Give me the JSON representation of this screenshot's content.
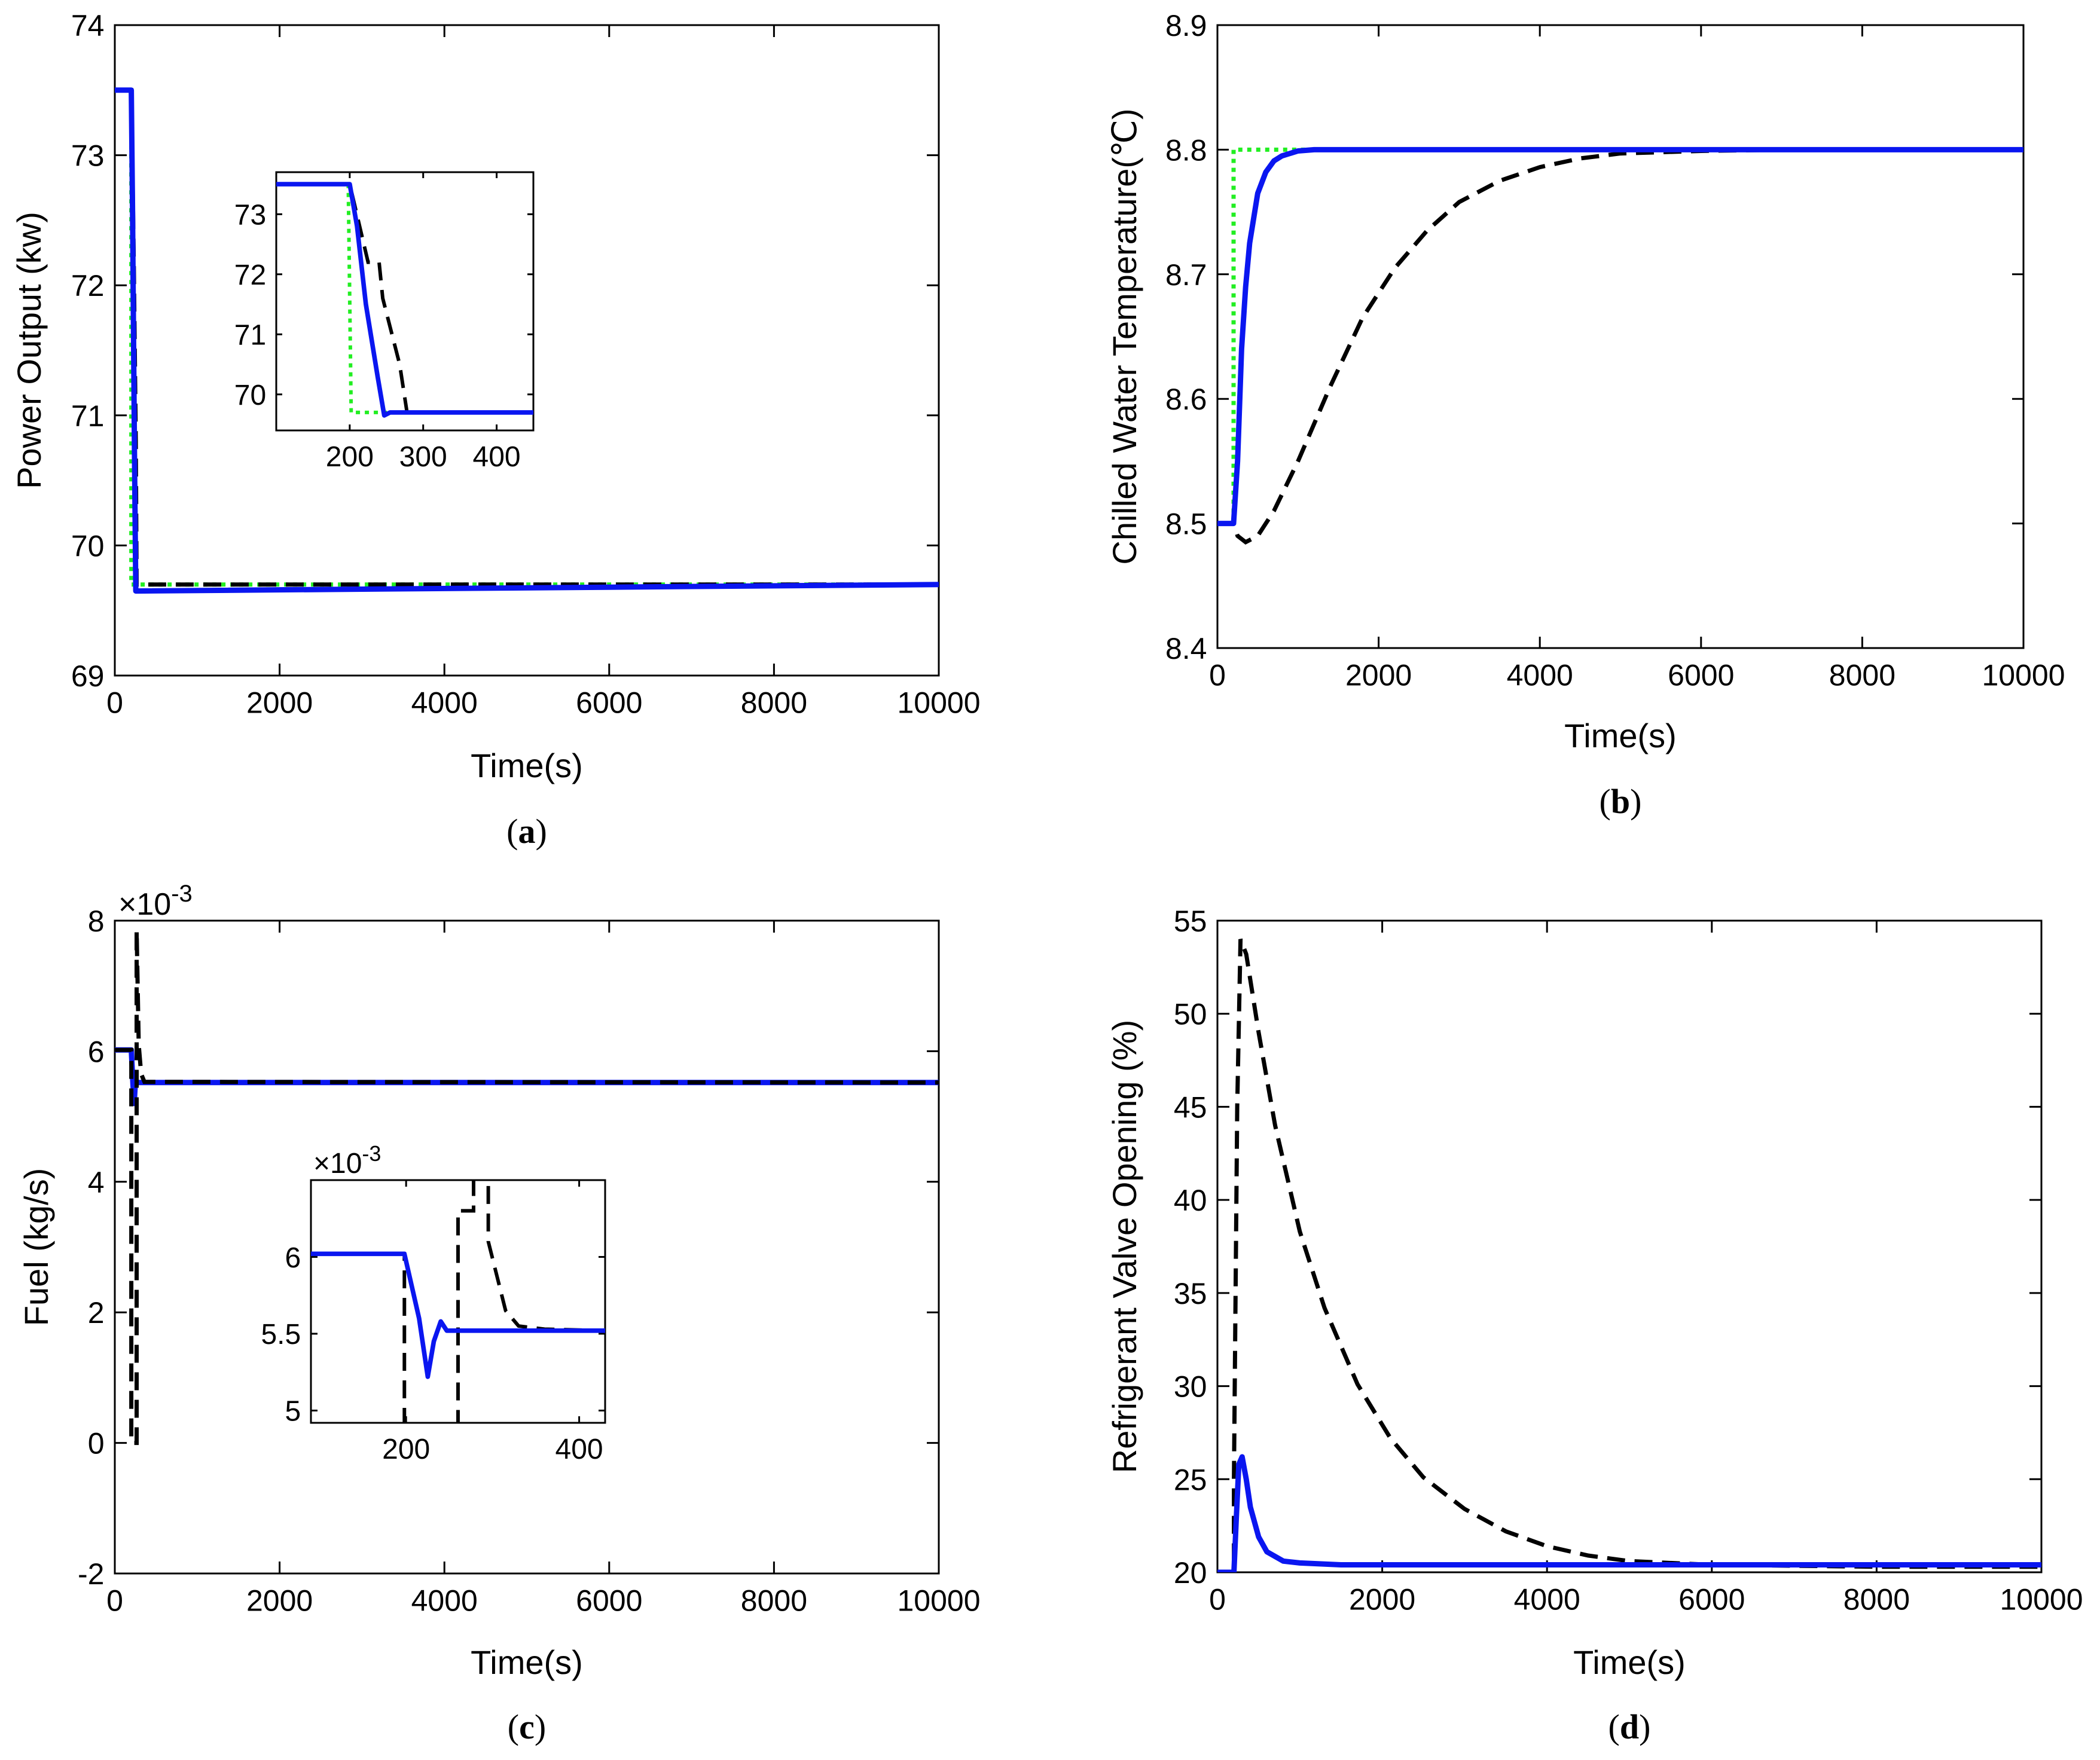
{
  "colors": {
    "blue": "#0a16f0",
    "green": "#22ee22",
    "black": "#000000"
  },
  "chart_data": [
    {
      "id": "a",
      "type": "line",
      "caption_letter": "a",
      "xlabel": "Time(s)",
      "ylabel": "Power Output (kw)",
      "xlim": [
        0,
        10000
      ],
      "ylim": [
        69,
        74
      ],
      "xticks": [
        0,
        2000,
        4000,
        6000,
        8000,
        10000
      ],
      "yticks": [
        69,
        70,
        71,
        72,
        73,
        74
      ],
      "series": [
        {
          "name": "green dotted",
          "style": "green-dotted",
          "x": [
            0,
            200,
            200,
            10000
          ],
          "y": [
            73.5,
            73.5,
            69.7,
            69.7
          ]
        },
        {
          "name": "black dashed",
          "style": "black-dashed",
          "x": [
            0,
            200,
            230,
            255,
            265,
            10000
          ],
          "y": [
            73.5,
            73.5,
            72.2,
            70.8,
            69.7,
            69.7
          ]
        },
        {
          "name": "blue solid",
          "style": "blue-solid",
          "x": [
            0,
            200,
            215,
            240,
            255,
            10000
          ],
          "y": [
            73.5,
            73.5,
            72.6,
            70.6,
            69.65,
            69.7
          ]
        }
      ],
      "inset": {
        "xlim": [
          100,
          450
        ],
        "ylim": [
          69.4,
          73.7
        ],
        "xticks": [
          200,
          300,
          400
        ],
        "yticks": [
          70,
          71,
          72,
          73
        ],
        "series": [
          {
            "style": "green-dotted",
            "x": [
              100,
              198,
              202,
              450
            ],
            "y": [
              73.5,
              73.5,
              69.7,
              69.7
            ]
          },
          {
            "style": "black-dashed",
            "x": [
              100,
              200,
              225,
              240,
              245,
              268,
              278,
              450
            ],
            "y": [
              73.5,
              73.5,
              72.2,
              72.2,
              71.6,
              70.5,
              69.7,
              69.7
            ]
          },
          {
            "style": "blue-solid",
            "x": [
              100,
              200,
              210,
              222,
              238,
              247,
              255,
              450
            ],
            "y": [
              73.5,
              73.5,
              72.8,
              71.5,
              70.3,
              69.65,
              69.7,
              69.7
            ]
          }
        ]
      }
    },
    {
      "id": "b",
      "type": "line",
      "caption_letter": "b",
      "xlabel": "Time(s)",
      "ylabel": "Chilled Water Temperature(℃)",
      "xlim": [
        0,
        10000
      ],
      "ylim": [
        8.4,
        8.9
      ],
      "xticks": [
        0,
        2000,
        4000,
        6000,
        8000,
        10000
      ],
      "yticks": [
        8.4,
        8.5,
        8.6,
        8.7,
        8.8,
        8.9
      ],
      "series": [
        {
          "name": "green dotted",
          "style": "green-dotted",
          "x": [
            0,
            200,
            200,
            10000
          ],
          "y": [
            8.5,
            8.5,
            8.8,
            8.8
          ]
        },
        {
          "name": "black dashed",
          "style": "black-dashed",
          "x": [
            0,
            200,
            250,
            350,
            500,
            700,
            1000,
            1400,
            1800,
            2200,
            2600,
            3000,
            3500,
            4000,
            4500,
            5000,
            6000,
            7000,
            8000,
            10000
          ],
          "y": [
            8.5,
            8.5,
            8.49,
            8.485,
            8.49,
            8.51,
            8.55,
            8.61,
            8.665,
            8.705,
            8.735,
            8.758,
            8.775,
            8.786,
            8.793,
            8.797,
            8.799,
            8.8,
            8.8,
            8.8
          ]
        },
        {
          "name": "blue solid",
          "style": "blue-solid",
          "x": [
            0,
            200,
            250,
            300,
            350,
            400,
            500,
            600,
            700,
            800,
            1000,
            1200,
            1500,
            2000,
            10000
          ],
          "y": [
            8.5,
            8.5,
            8.55,
            8.64,
            8.69,
            8.725,
            8.765,
            8.782,
            8.791,
            8.795,
            8.799,
            8.8,
            8.8,
            8.8,
            8.8
          ]
        }
      ]
    },
    {
      "id": "c",
      "type": "line",
      "caption_letter": "c",
      "xlabel": "Time(s)",
      "ylabel": "Fuel (kg/s)",
      "exponent_label": "×10",
      "exponent_power": "-3",
      "xlim": [
        0,
        10000
      ],
      "ylim": [
        -2,
        8
      ],
      "xticks": [
        0,
        2000,
        4000,
        6000,
        8000,
        10000
      ],
      "yticks": [
        -2,
        0,
        2,
        4,
        6,
        8
      ],
      "series": [
        {
          "name": "blue solid",
          "style": "blue-solid",
          "x": [
            0,
            200,
            220,
            235,
            250,
            10000
          ],
          "y": [
            6.02,
            6.02,
            5.5,
            5.2,
            5.52,
            5.52
          ]
        },
        {
          "name": "black dashed",
          "style": "black-dashed",
          "x": [
            0,
            200,
            200,
            265,
            265,
            290,
            320,
            360,
            10000
          ],
          "y": [
            6.02,
            6.02,
            0,
            0,
            7.85,
            6.1,
            5.65,
            5.53,
            5.52
          ]
        }
      ],
      "inset": {
        "exponent_label": "×10",
        "exponent_power": "-3",
        "xlim": [
          90,
          430
        ],
        "ylim": [
          4.92,
          6.5
        ],
        "xticks": [
          200,
          400
        ],
        "yticks": [
          5,
          5.5,
          6
        ],
        "series": [
          {
            "style": "black-dashed",
            "x": [
              90,
              198,
              198,
              260,
              260,
              278,
              278,
              295,
              295,
              315,
              330,
              360,
              430
            ],
            "y": [
              6.02,
              6.02,
              4.5,
              4.5,
              6.3,
              6.3,
              6.65,
              6.65,
              6.1,
              5.65,
              5.55,
              5.53,
              5.52
            ]
          },
          {
            "style": "blue-solid",
            "x": [
              90,
              198,
              215,
              225,
              232,
              240,
              247,
              430
            ],
            "y": [
              6.02,
              6.02,
              5.6,
              5.22,
              5.45,
              5.58,
              5.52,
              5.52
            ]
          }
        ]
      }
    },
    {
      "id": "d",
      "type": "line",
      "caption_letter": "d",
      "xlabel": "Time(s)",
      "ylabel": "Refrigerant Valve Opening (%)",
      "xlim": [
        0,
        10000
      ],
      "ylim": [
        20,
        55
      ],
      "xticks": [
        0,
        2000,
        4000,
        6000,
        8000,
        10000
      ],
      "yticks": [
        20,
        25,
        30,
        35,
        40,
        45,
        50,
        55
      ],
      "series": [
        {
          "name": "black dashed",
          "style": "black-dashed",
          "x": [
            0,
            200,
            200,
            240,
            280,
            350,
            500,
            700,
            1000,
            1300,
            1700,
            2100,
            2500,
            3000,
            3500,
            4000,
            4500,
            5000,
            6000,
            7000,
            8000,
            10000
          ],
          "y": [
            20,
            20,
            25,
            45,
            54,
            53.2,
            49,
            44,
            38.3,
            34.2,
            30.1,
            27.2,
            25.1,
            23.4,
            22.2,
            21.4,
            20.9,
            20.6,
            20.4,
            20.35,
            20.3,
            20.3
          ]
        },
        {
          "name": "blue solid",
          "style": "blue-solid",
          "x": [
            0,
            200,
            230,
            260,
            300,
            350,
            400,
            500,
            600,
            800,
            1000,
            1500,
            10000
          ],
          "y": [
            20,
            20,
            23,
            25.8,
            26.2,
            25,
            23.5,
            21.9,
            21.1,
            20.6,
            20.5,
            20.4,
            20.4
          ]
        }
      ]
    }
  ]
}
